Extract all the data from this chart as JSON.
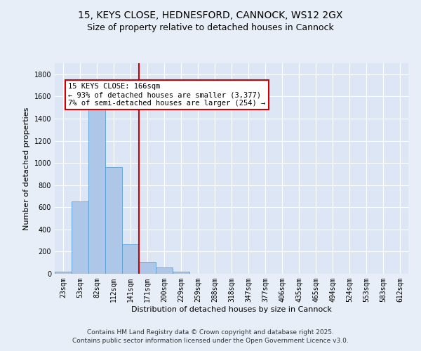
{
  "title1": "15, KEYS CLOSE, HEDNESFORD, CANNOCK, WS12 2GX",
  "title2": "Size of property relative to detached houses in Cannock",
  "xlabel": "Distribution of detached houses by size in Cannock",
  "ylabel": "Number of detached properties",
  "categories": [
    "23sqm",
    "53sqm",
    "82sqm",
    "112sqm",
    "141sqm",
    "171sqm",
    "200sqm",
    "229sqm",
    "259sqm",
    "288sqm",
    "318sqm",
    "347sqm",
    "377sqm",
    "406sqm",
    "435sqm",
    "465sqm",
    "494sqm",
    "524sqm",
    "553sqm",
    "583sqm",
    "612sqm"
  ],
  "values": [
    20,
    650,
    1680,
    960,
    265,
    105,
    60,
    20,
    0,
    0,
    0,
    0,
    0,
    0,
    0,
    0,
    0,
    0,
    0,
    0,
    0
  ],
  "bar_color": "#aec6e8",
  "bar_edge_color": "#5a9fd4",
  "vline_color": "#cc0000",
  "annotation_text": "15 KEYS CLOSE: 166sqm\n← 93% of detached houses are smaller (3,377)\n7% of semi-detached houses are larger (254) →",
  "annotation_box_color": "#cc0000",
  "ylim": [
    0,
    1900
  ],
  "yticks": [
    0,
    200,
    400,
    600,
    800,
    1000,
    1200,
    1400,
    1600,
    1800
  ],
  "bg_color": "#e8eef7",
  "plot_bg_color": "#dce6f5",
  "grid_color": "#ffffff",
  "footnote1": "Contains HM Land Registry data © Crown copyright and database right 2025.",
  "footnote2": "Contains public sector information licensed under the Open Government Licence v3.0.",
  "title_fontsize": 10,
  "subtitle_fontsize": 9,
  "axis_label_fontsize": 8,
  "tick_fontsize": 7,
  "annotation_fontsize": 7.5,
  "footnote_fontsize": 6.5
}
